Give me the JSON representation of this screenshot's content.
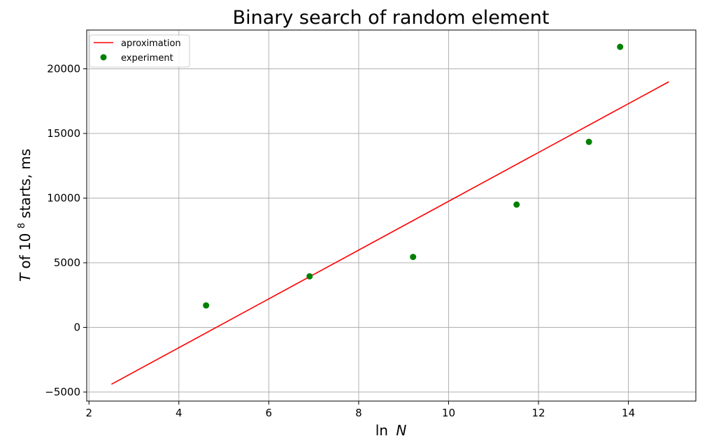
{
  "chart_data": {
    "type": "scatter",
    "title": "Binary search of random element",
    "xlabel": {
      "prefix": "ln",
      "variable": "N"
    },
    "ylabel": {
      "variable": "T",
      "middle": " of 10",
      "superscript": "8",
      "suffix": " starts, ms"
    },
    "xlim": [
      1.95,
      15.5
    ],
    "ylim": [
      -5700,
      23000
    ],
    "xticks": [
      2,
      4,
      6,
      8,
      10,
      12,
      14
    ],
    "yticks": [
      -5000,
      0,
      5000,
      10000,
      15000,
      20000
    ],
    "ytick_labels": [
      "−5000",
      "0",
      "5000",
      "10000",
      "15000",
      "20000"
    ],
    "grid": true,
    "legend_position": "top-left",
    "series": [
      {
        "name": "aproximation",
        "type": "line",
        "color": "#ff0000",
        "x": [
          2.5,
          14.9
        ],
        "y": [
          -4400,
          19000
        ]
      },
      {
        "name": "experiment",
        "type": "scatter",
        "color": "#008000",
        "x": [
          4.605,
          6.908,
          9.21,
          11.513,
          13.122,
          13.816
        ],
        "y": [
          1700,
          3950,
          5450,
          9500,
          14350,
          21700
        ]
      }
    ]
  }
}
